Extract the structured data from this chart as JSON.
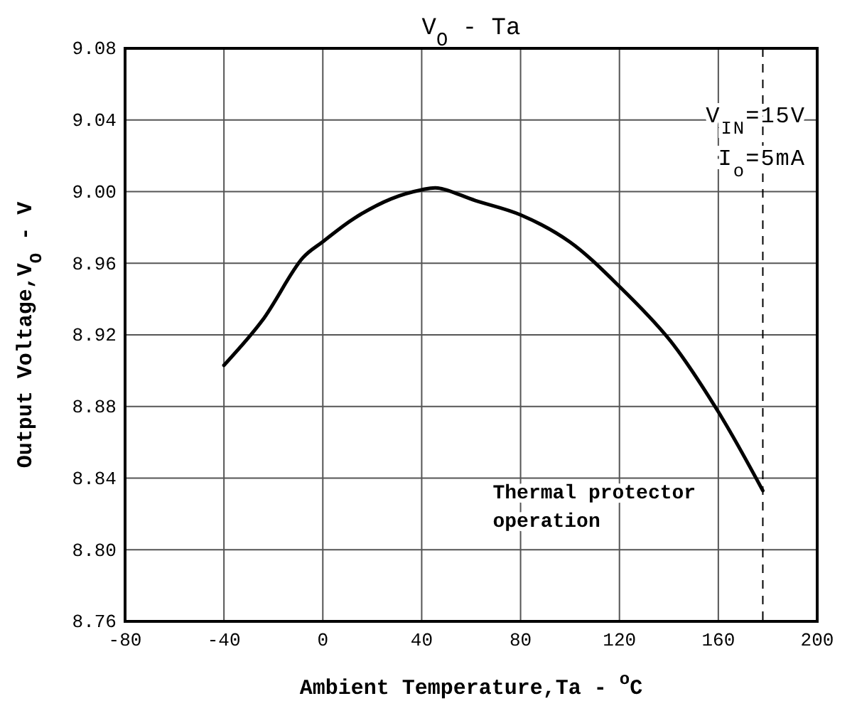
{
  "chart_data": {
    "type": "line",
    "title": "V$_{O}$ - Ta",
    "xlabel": "Ambient Temperature,Ta - $^{o}$C",
    "ylabel": "Output Voltage,V$_{O}$ - V",
    "x": [
      -40,
      -24.5,
      -8.1,
      0,
      12.6,
      27.7,
      40,
      46.6,
      61.7,
      80,
      99.8,
      120,
      140.4,
      160,
      178
    ],
    "series": [
      {
        "color": "#000000",
        "values": [
          8.903,
          8.928,
          8.963,
          8.972,
          8.985,
          8.996,
          9.001,
          9.002,
          8.995,
          8.987,
          8.972,
          8.947,
          8.917,
          8.877,
          8.833
        ]
      }
    ],
    "xlim": [
      -80,
      200
    ],
    "xticks": [
      -80,
      -40,
      0,
      40,
      80,
      120,
      160,
      200
    ],
    "ylim": [
      8.76,
      9.08
    ],
    "yticks": [
      {
        "value": 8.76,
        "label": "8.76"
      },
      {
        "value": 8.8,
        "label": "8.80"
      },
      {
        "value": 8.84,
        "label": "8.84"
      },
      {
        "value": 8.88,
        "label": "8.88"
      },
      {
        "value": 8.92,
        "label": "8.92"
      },
      {
        "value": 8.96,
        "label": "8.96"
      },
      {
        "value": 9.0,
        "label": "9.00"
      },
      {
        "value": 9.04,
        "label": "9.04"
      },
      {
        "value": 9.08,
        "label": "9.08"
      }
    ],
    "grid": true,
    "marker": "none",
    "line_style": "solid",
    "ref_lines": [
      {
        "axis": "x",
        "value": 178,
        "label": "Thermal protector operation",
        "line_style": "dashed",
        "color": "#000000"
      }
    ],
    "annotations": [
      "V$_{IN}$=15V",
      "I$_{o}$=5mA"
    ]
  }
}
